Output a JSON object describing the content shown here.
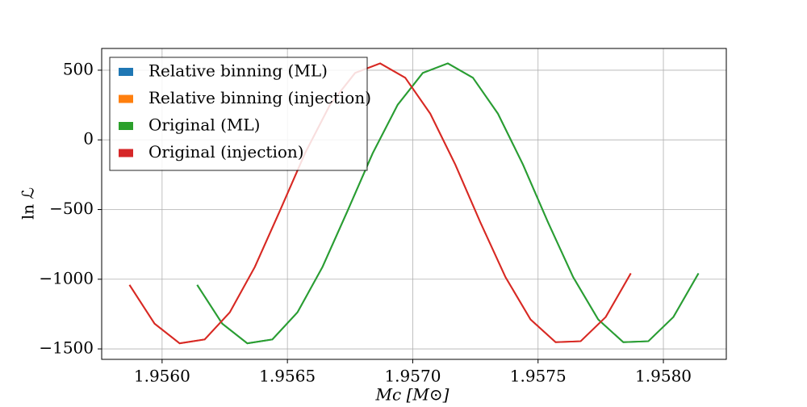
{
  "chart_data": {
    "type": "line",
    "xlabel": "Mc [M⊙]",
    "ylabel": "ln ℒ",
    "series": [
      {
        "name": "Relative binning (ML)",
        "color": "#1f77b4",
        "x": [
          1.95614,
          1.95624,
          1.95634,
          1.95644,
          1.95654,
          1.95664,
          1.95674,
          1.95684,
          1.95694,
          1.95704,
          1.95714,
          1.95724,
          1.95734,
          1.95744,
          1.95754,
          1.95764,
          1.95774,
          1.95784,
          1.95794,
          1.95804,
          1.95814
        ],
        "values": [
          -1041,
          -1319,
          -1460,
          -1432,
          -1238,
          -912,
          -509,
          -97,
          252,
          480,
          549,
          446,
          188,
          -178,
          -593,
          -985,
          -1289,
          -1452,
          -1445,
          -1271,
          -958
        ]
      },
      {
        "name": "Relative binning (injection)",
        "color": "#ff7f0e",
        "x": [
          1.95587,
          1.95597,
          1.95607,
          1.95617,
          1.95627,
          1.95637,
          1.95647,
          1.95657,
          1.95667,
          1.95677,
          1.95687,
          1.95697,
          1.95707,
          1.95717,
          1.95727,
          1.95737,
          1.95747,
          1.95757,
          1.95767,
          1.95777,
          1.95787
        ],
        "values": [
          -1041,
          -1319,
          -1460,
          -1432,
          -1238,
          -912,
          -509,
          -97,
          252,
          480,
          549,
          446,
          188,
          -178,
          -593,
          -985,
          -1289,
          -1452,
          -1445,
          -1271,
          -958
        ]
      },
      {
        "name": "Original (ML)",
        "color": "#2ca02c",
        "x": [
          1.95614,
          1.95624,
          1.95634,
          1.95644,
          1.95654,
          1.95664,
          1.95674,
          1.95684,
          1.95694,
          1.95704,
          1.95714,
          1.95724,
          1.95734,
          1.95744,
          1.95754,
          1.95764,
          1.95774,
          1.95784,
          1.95794,
          1.95804,
          1.95814
        ],
        "values": [
          -1041,
          -1319,
          -1460,
          -1432,
          -1238,
          -912,
          -509,
          -97,
          252,
          480,
          549,
          446,
          188,
          -178,
          -593,
          -985,
          -1289,
          -1452,
          -1445,
          -1271,
          -958
        ]
      },
      {
        "name": "Original (injection)",
        "color": "#d62728",
        "x": [
          1.95587,
          1.95597,
          1.95607,
          1.95617,
          1.95627,
          1.95637,
          1.95647,
          1.95657,
          1.95667,
          1.95677,
          1.95687,
          1.95697,
          1.95707,
          1.95717,
          1.95727,
          1.95737,
          1.95747,
          1.95757,
          1.95767,
          1.95777,
          1.95787
        ],
        "values": [
          -1041,
          -1319,
          -1460,
          -1432,
          -1238,
          -912,
          -509,
          -97,
          252,
          480,
          549,
          446,
          188,
          -178,
          -593,
          -985,
          -1289,
          -1452,
          -1445,
          -1271,
          -958
        ]
      }
    ],
    "xlim": [
      1.955759,
      1.958251
    ],
    "xticks": [
      {
        "value": 1.956,
        "label": "1.9560"
      },
      {
        "value": 1.9565,
        "label": "1.9565"
      },
      {
        "value": 1.957,
        "label": "1.9570"
      },
      {
        "value": 1.9575,
        "label": "1.9575"
      },
      {
        "value": 1.958,
        "label": "1.9580"
      }
    ],
    "ylim": [
      -1575,
      656
    ],
    "yticks": [
      {
        "value": 500,
        "label": "500"
      },
      {
        "value": 0,
        "label": "0"
      },
      {
        "value": -500,
        "label": "−500"
      },
      {
        "value": -1000,
        "label": "−1000"
      },
      {
        "value": -1500,
        "label": "−1500"
      }
    ],
    "grid": true,
    "legend": "upper left"
  }
}
